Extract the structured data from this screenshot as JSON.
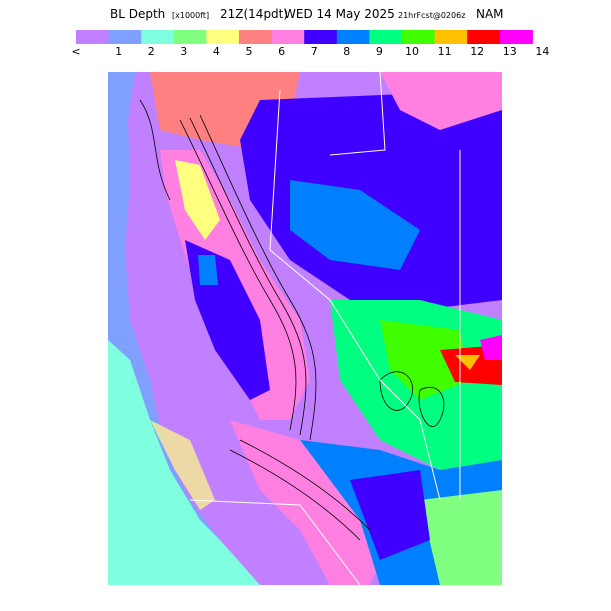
{
  "header": {
    "title": "BL Depth",
    "units": "[x1000ft]",
    "valid": "21Z(14pdt)",
    "date": "WED 14 May 2025",
    "forecast": "21hrFcst@0206z",
    "model": "NAM"
  },
  "colorbar": {
    "labels": [
      "<",
      "1",
      "2",
      "3",
      "4",
      "5",
      "6",
      "7",
      "8",
      "9",
      "10",
      "11",
      "12",
      "13",
      "14"
    ],
    "colors": [
      "#c080ff",
      "#80a0ff",
      "#80ffe0",
      "#80ff80",
      "#ffff80",
      "#ff8080",
      "#ff80e0",
      "#4000ff",
      "#0080ff",
      "#00ff80",
      "#40ff00",
      "#ffc000",
      "#ff0000",
      "#ff00ff"
    ]
  }
}
